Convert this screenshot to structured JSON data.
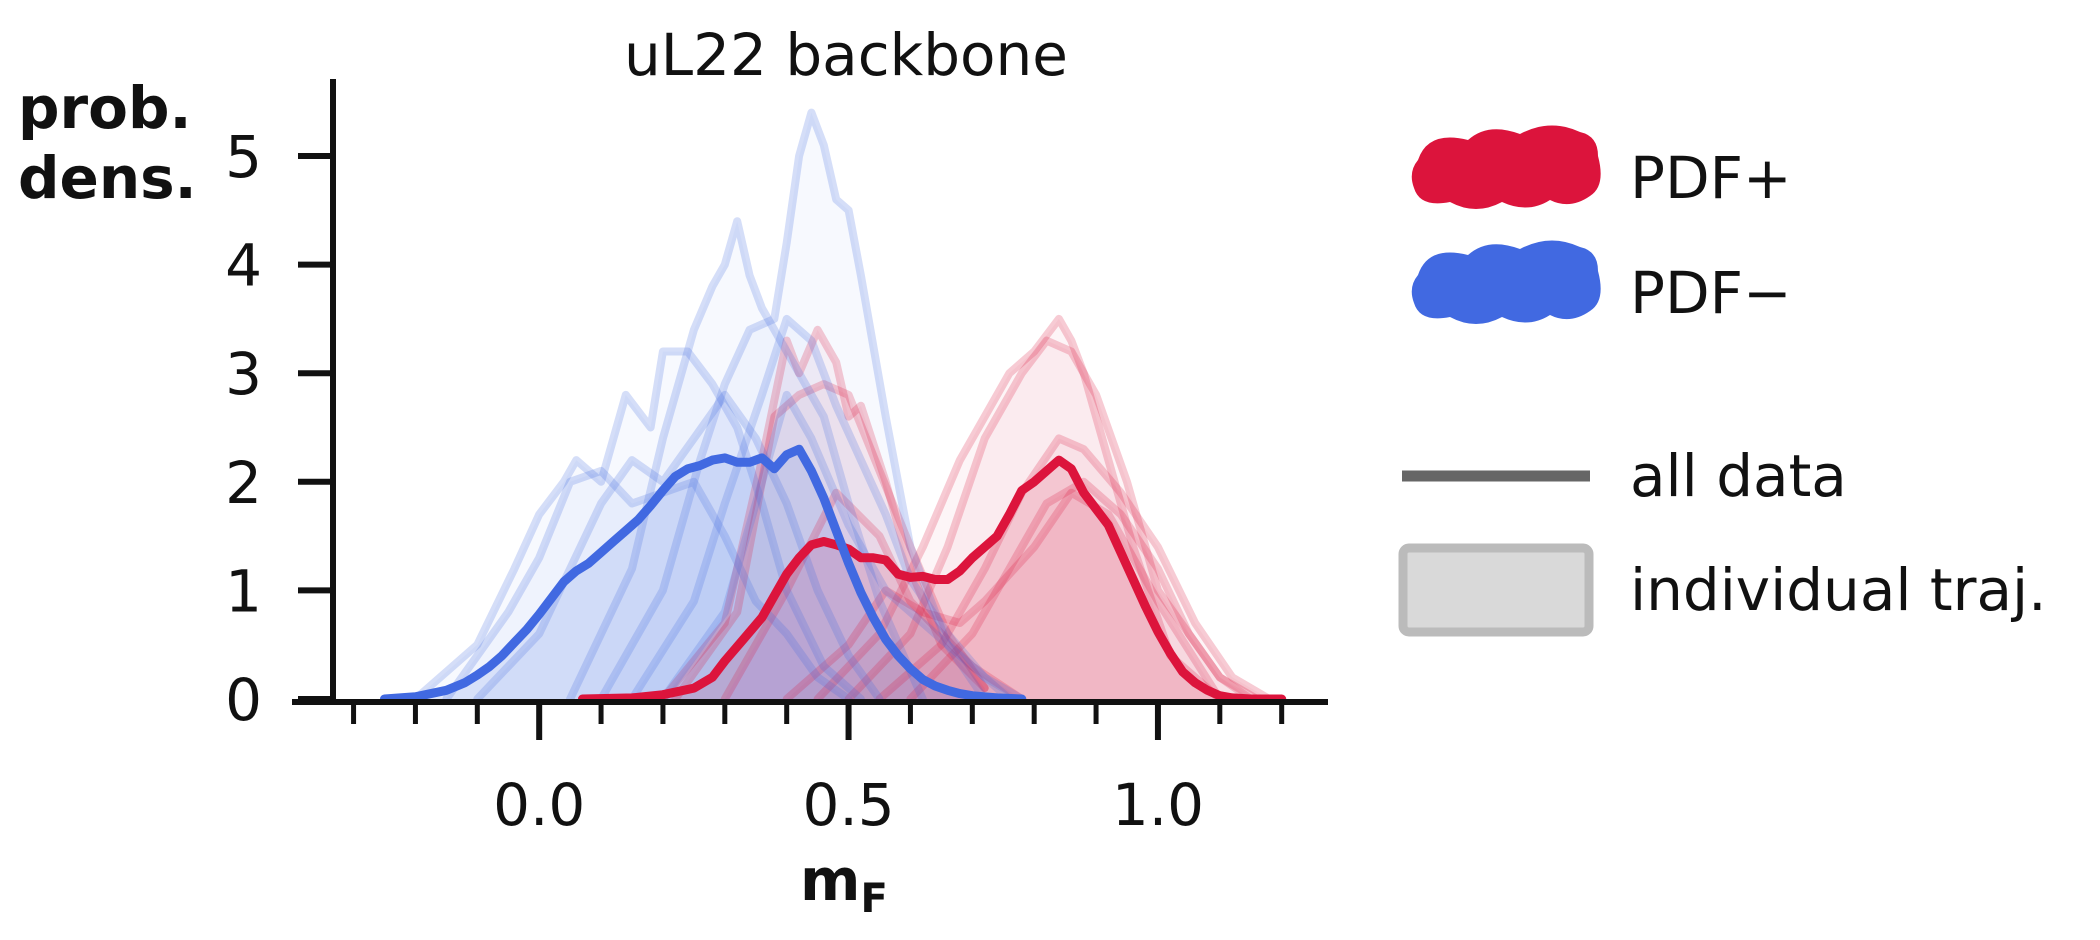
{
  "chart_data": {
    "type": "line",
    "title": "uL22 backbone",
    "xlabel": "m",
    "xlabel_subscript": "F",
    "ylabel_line1": "prob.",
    "ylabel_line2": "dens.",
    "xlim": [
      -0.33,
      1.27
    ],
    "ylim": [
      0,
      5.7
    ],
    "x_ticks": [
      0.0,
      0.5,
      1.0
    ],
    "x_tick_labels": [
      "0.0",
      "0.5",
      "1.0"
    ],
    "x_minor_ticks": [
      -0.3,
      -0.2,
      -0.1,
      0.1,
      0.2,
      0.3,
      0.4,
      0.6,
      0.7,
      0.8,
      0.9,
      1.1,
      1.2
    ],
    "y_ticks": [
      0,
      1,
      2,
      3,
      4,
      5
    ],
    "y_tick_labels": [
      "0",
      "1",
      "2",
      "3",
      "4",
      "5"
    ],
    "grid": false,
    "legend_position": "right",
    "colors": {
      "pdf_plus": "#dc143c",
      "pdf_minus": "#4169e1",
      "style_line": "#666666",
      "style_fill": "#d9d9d9"
    },
    "legend": [
      {
        "label": "PDF+",
        "kind": "blob",
        "color": "#dc143c"
      },
      {
        "label": "PDF−",
        "kind": "blob",
        "color": "#4169e1"
      },
      {
        "label": "all data",
        "kind": "line",
        "color": "#666666"
      },
      {
        "label": "individual traj.",
        "kind": "box",
        "color": "#d9d9d9"
      }
    ],
    "series": [
      {
        "name": "PDF+",
        "kind": "all-data",
        "color": "#dc143c",
        "x": [
          0.07,
          0.15,
          0.2,
          0.25,
          0.28,
          0.3,
          0.33,
          0.36,
          0.38,
          0.4,
          0.42,
          0.44,
          0.46,
          0.48,
          0.5,
          0.52,
          0.54,
          0.56,
          0.58,
          0.6,
          0.62,
          0.64,
          0.66,
          0.68,
          0.7,
          0.72,
          0.74,
          0.76,
          0.78,
          0.8,
          0.82,
          0.84,
          0.86,
          0.88,
          0.9,
          0.92,
          0.94,
          0.96,
          0.98,
          1.0,
          1.02,
          1.04,
          1.06,
          1.08,
          1.1,
          1.12,
          1.15,
          1.2
        ],
        "y": [
          0,
          0.01,
          0.04,
          0.1,
          0.2,
          0.35,
          0.55,
          0.75,
          0.95,
          1.15,
          1.3,
          1.42,
          1.45,
          1.42,
          1.38,
          1.3,
          1.3,
          1.28,
          1.15,
          1.12,
          1.13,
          1.1,
          1.1,
          1.18,
          1.3,
          1.4,
          1.5,
          1.7,
          1.92,
          2.0,
          2.1,
          2.2,
          2.12,
          1.9,
          1.75,
          1.6,
          1.35,
          1.1,
          0.85,
          0.62,
          0.42,
          0.25,
          0.15,
          0.08,
          0.03,
          0.01,
          0.0,
          0.0
        ]
      },
      {
        "name": "PDF−",
        "kind": "all-data",
        "color": "#4169e1",
        "x": [
          -0.25,
          -0.2,
          -0.15,
          -0.12,
          -0.1,
          -0.08,
          -0.06,
          -0.04,
          -0.02,
          0.0,
          0.02,
          0.04,
          0.06,
          0.08,
          0.1,
          0.12,
          0.14,
          0.16,
          0.18,
          0.2,
          0.22,
          0.24,
          0.26,
          0.28,
          0.3,
          0.32,
          0.34,
          0.36,
          0.38,
          0.4,
          0.42,
          0.44,
          0.46,
          0.48,
          0.5,
          0.52,
          0.54,
          0.56,
          0.58,
          0.6,
          0.62,
          0.64,
          0.66,
          0.68,
          0.7,
          0.72,
          0.74,
          0.78
        ],
        "y": [
          0,
          0.02,
          0.08,
          0.15,
          0.22,
          0.3,
          0.4,
          0.52,
          0.64,
          0.78,
          0.93,
          1.08,
          1.18,
          1.25,
          1.35,
          1.45,
          1.55,
          1.65,
          1.78,
          1.92,
          2.05,
          2.12,
          2.15,
          2.2,
          2.22,
          2.18,
          2.18,
          2.22,
          2.12,
          2.25,
          2.3,
          2.1,
          1.85,
          1.55,
          1.25,
          0.98,
          0.75,
          0.55,
          0.4,
          0.28,
          0.18,
          0.12,
          0.08,
          0.05,
          0.03,
          0.02,
          0.01,
          0.0
        ]
      },
      {
        "name": "",
        "kind": "individual",
        "color": "#dc143c",
        "x": [
          0.2,
          0.3,
          0.36,
          0.4,
          0.42,
          0.45,
          0.48,
          0.5,
          0.52,
          0.56,
          0.6,
          0.65,
          0.72
        ],
        "y": [
          0,
          0.7,
          2.2,
          3.3,
          3.0,
          3.4,
          3.1,
          2.6,
          2.7,
          2.0,
          1.2,
          0.5,
          0.1
        ]
      },
      {
        "name": "",
        "kind": "individual",
        "color": "#dc143c",
        "x": [
          0.22,
          0.32,
          0.38,
          0.42,
          0.46,
          0.5,
          0.55,
          0.6,
          0.66,
          0.72
        ],
        "y": [
          0,
          0.8,
          2.6,
          2.8,
          2.9,
          2.8,
          2.1,
          1.4,
          0.6,
          0.1
        ]
      },
      {
        "name": "",
        "kind": "individual",
        "color": "#dc143c",
        "x": [
          0.3,
          0.4,
          0.48,
          0.55,
          0.6,
          0.65,
          0.7,
          0.78
        ],
        "y": [
          0,
          1.0,
          1.9,
          1.5,
          0.9,
          0.6,
          0.3,
          0.0
        ]
      },
      {
        "name": "",
        "kind": "individual",
        "color": "#dc143c",
        "x": [
          0.45,
          0.55,
          0.62,
          0.68,
          0.72,
          0.76,
          0.8,
          0.84,
          0.86,
          0.88,
          0.92,
          0.96,
          1.02,
          1.1
        ],
        "y": [
          0,
          0.6,
          1.4,
          2.2,
          2.6,
          3.0,
          3.2,
          3.5,
          3.3,
          3.0,
          2.2,
          1.4,
          0.4,
          0.0
        ]
      },
      {
        "name": "",
        "kind": "individual",
        "color": "#dc143c",
        "x": [
          0.5,
          0.6,
          0.66,
          0.72,
          0.78,
          0.82,
          0.86,
          0.9,
          0.95,
          1.0,
          1.1,
          1.15
        ],
        "y": [
          0,
          0.6,
          1.4,
          2.4,
          3.0,
          3.3,
          3.2,
          2.8,
          2.0,
          1.0,
          0.2,
          0.0
        ]
      },
      {
        "name": "",
        "kind": "individual",
        "color": "#dc143c",
        "x": [
          0.55,
          0.65,
          0.72,
          0.78,
          0.84,
          0.88,
          0.94,
          1.0,
          1.06,
          1.12,
          1.18
        ],
        "y": [
          0,
          0.5,
          1.2,
          1.9,
          2.4,
          2.3,
          1.9,
          1.4,
          0.7,
          0.2,
          0.0
        ]
      },
      {
        "name": "",
        "kind": "individual",
        "color": "#dc143c",
        "x": [
          0.6,
          0.7,
          0.76,
          0.82,
          0.88,
          0.94,
          1.0,
          1.05,
          1.1,
          1.16
        ],
        "y": [
          0,
          0.6,
          1.2,
          1.8,
          2.0,
          1.7,
          1.2,
          0.6,
          0.2,
          0.0
        ]
      },
      {
        "name": "",
        "kind": "individual",
        "color": "#dc143c",
        "x": [
          0.4,
          0.5,
          0.56,
          0.62,
          0.68,
          0.72,
          0.8,
          0.86,
          0.92,
          1.0,
          1.1
        ],
        "y": [
          0,
          0.5,
          1.0,
          0.8,
          0.7,
          0.9,
          1.4,
          1.9,
          1.7,
          0.9,
          0.0
        ]
      },
      {
        "name": "",
        "kind": "individual",
        "color": "#4169e1",
        "x": [
          -0.2,
          -0.1,
          -0.04,
          0.0,
          0.04,
          0.06,
          0.1,
          0.14,
          0.18,
          0.2,
          0.24,
          0.28,
          0.32,
          0.36,
          0.4,
          0.46,
          0.52
        ],
        "y": [
          0,
          0.5,
          1.2,
          1.7,
          2.0,
          2.2,
          2.0,
          2.8,
          2.5,
          3.2,
          3.2,
          2.9,
          2.5,
          1.8,
          1.0,
          0.3,
          0.0
        ]
      },
      {
        "name": "",
        "kind": "individual",
        "color": "#4169e1",
        "x": [
          -0.15,
          -0.05,
          0.0,
          0.05,
          0.1,
          0.15,
          0.2,
          0.25,
          0.3,
          0.35,
          0.4,
          0.45,
          0.5
        ],
        "y": [
          0,
          0.8,
          1.3,
          2.0,
          2.1,
          1.8,
          1.9,
          2.0,
          1.5,
          0.9,
          0.6,
          0.2,
          0.0
        ]
      },
      {
        "name": "",
        "kind": "individual",
        "color": "#4169e1",
        "x": [
          -0.1,
          0.0,
          0.05,
          0.1,
          0.15,
          0.2,
          0.25,
          0.3,
          0.35,
          0.4,
          0.45,
          0.5,
          0.55
        ],
        "y": [
          0,
          0.6,
          1.2,
          1.8,
          2.2,
          2.0,
          2.4,
          2.8,
          2.4,
          1.8,
          1.0,
          0.4,
          0.0
        ]
      },
      {
        "name": "",
        "kind": "individual",
        "color": "#4169e1",
        "x": [
          0.05,
          0.15,
          0.2,
          0.25,
          0.28,
          0.3,
          0.32,
          0.34,
          0.36,
          0.38,
          0.42,
          0.46,
          0.5,
          0.55,
          0.62
        ],
        "y": [
          0,
          1.2,
          2.4,
          3.4,
          3.8,
          4.0,
          4.4,
          3.9,
          3.6,
          3.4,
          3.0,
          2.6,
          1.8,
          0.9,
          0.0
        ]
      },
      {
        "name": "",
        "kind": "individual",
        "color": "#4169e1",
        "x": [
          0.1,
          0.2,
          0.26,
          0.3,
          0.34,
          0.38,
          0.4,
          0.42,
          0.44,
          0.46,
          0.48,
          0.5,
          0.52,
          0.56,
          0.6,
          0.66,
          0.72
        ],
        "y": [
          0,
          1.0,
          2.2,
          2.9,
          3.4,
          3.5,
          4.2,
          5.0,
          5.4,
          5.1,
          4.6,
          4.5,
          3.9,
          2.6,
          1.4,
          0.5,
          0.0
        ]
      },
      {
        "name": "",
        "kind": "individual",
        "color": "#4169e1",
        "x": [
          0.15,
          0.25,
          0.3,
          0.36,
          0.4,
          0.44,
          0.48,
          0.52,
          0.56,
          0.6,
          0.66,
          0.72,
          0.78
        ],
        "y": [
          0,
          0.9,
          1.8,
          2.8,
          3.5,
          3.3,
          2.7,
          2.2,
          1.7,
          1.1,
          0.6,
          0.2,
          0.0
        ]
      },
      {
        "name": "",
        "kind": "individual",
        "color": "#4169e1",
        "x": [
          0.2,
          0.3,
          0.34,
          0.38,
          0.4,
          0.44,
          0.5,
          0.56,
          0.6,
          0.66,
          0.72,
          0.76
        ],
        "y": [
          0,
          0.8,
          1.6,
          2.4,
          2.8,
          2.4,
          1.6,
          1.0,
          0.8,
          0.5,
          0.2,
          0.0
        ]
      }
    ]
  }
}
